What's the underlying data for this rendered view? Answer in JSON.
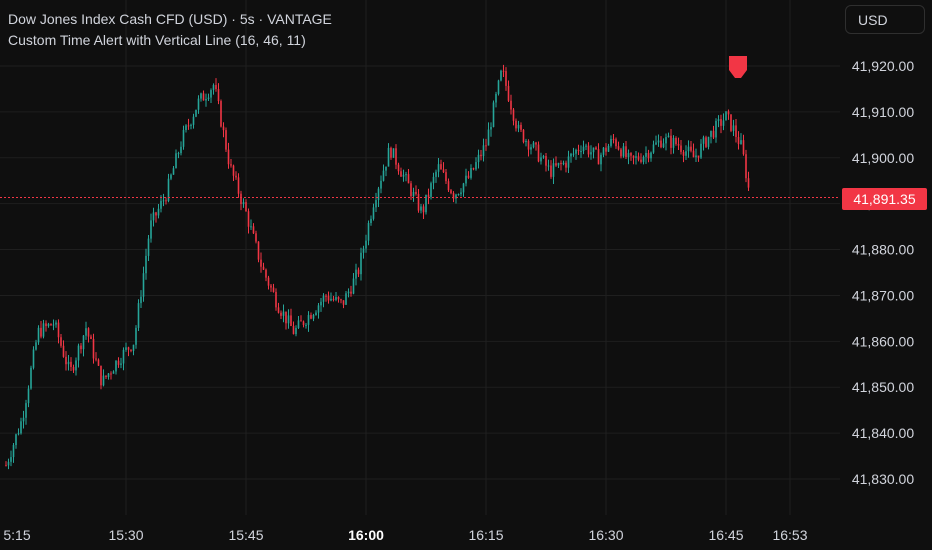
{
  "header": {
    "symbol_line": "Dow Jones Index Cash CFD (USD) · 5s · VANTAGE",
    "indicator_line": "Custom Time Alert with Vertical Line (16, 46, 11)"
  },
  "currency_button": "USD",
  "last_price_label": "41,891.35",
  "colors": {
    "up": "#26a69a",
    "down": "#f23645",
    "background": "#0f0f0f",
    "grid": "#1f1f1f",
    "text": "#d1d4dc"
  },
  "chart_data": {
    "type": "candlestick",
    "y_axis": {
      "range": [
        41825,
        41930
      ],
      "ticks": [
        41830,
        41840,
        41850,
        41860,
        41870,
        41880,
        41890,
        41900,
        41910,
        41920
      ],
      "tick_labels": [
        "41,830.00",
        "41,840.00",
        "41,850.00",
        "41,860.00",
        "41,870.00",
        "41,880.00",
        "41,890.00",
        "41,900.00",
        "41,910.00",
        "41,920.00"
      ]
    },
    "x_axis": {
      "tick_labels": [
        "5:15",
        "15:30",
        "15:45",
        "16:00",
        "16:15",
        "16:30",
        "16:45",
        "16:53"
      ],
      "bold_label": "16:00"
    },
    "last_price": 41891.35,
    "price_path": [
      [
        "15:15",
        41833
      ],
      [
        "15:17",
        41843
      ],
      [
        "15:19",
        41862
      ],
      [
        "15:21",
        41864
      ],
      [
        "15:23",
        41853
      ],
      [
        "15:25",
        41863
      ],
      [
        "15:27",
        41851
      ],
      [
        "15:29",
        41856
      ],
      [
        "15:31",
        41860
      ],
      [
        "15:33",
        41885
      ],
      [
        "15:35",
        41892
      ],
      [
        "15:37",
        41904
      ],
      [
        "15:39",
        41912
      ],
      [
        "15:41",
        41916
      ],
      [
        "15:43",
        41898
      ],
      [
        "15:45",
        41888
      ],
      [
        "15:47",
        41876
      ],
      [
        "15:49",
        41868
      ],
      [
        "15:51",
        41862
      ],
      [
        "15:53",
        41866
      ],
      [
        "15:55",
        41870
      ],
      [
        "15:57",
        41868
      ],
      [
        "15:59",
        41875
      ],
      [
        "16:01",
        41891
      ],
      [
        "16:03",
        41902
      ],
      [
        "16:05",
        41895
      ],
      [
        "16:07",
        41888
      ],
      [
        "16:09",
        41898
      ],
      [
        "16:11",
        41892
      ],
      [
        "16:13",
        41896
      ],
      [
        "16:15",
        41903
      ],
      [
        "16:17",
        41919
      ],
      [
        "16:19",
        41906
      ],
      [
        "16:21",
        41902
      ],
      [
        "16:23",
        41897
      ],
      [
        "16:25",
        41899
      ],
      [
        "16:27",
        41903
      ],
      [
        "16:29",
        41900
      ],
      [
        "16:31",
        41904
      ],
      [
        "16:33",
        41899
      ],
      [
        "16:35",
        41901
      ],
      [
        "16:37",
        41904
      ],
      [
        "16:39",
        41903
      ],
      [
        "16:41",
        41900
      ],
      [
        "16:43",
        41905
      ],
      [
        "16:45",
        41909
      ],
      [
        "16:46",
        41906
      ],
      [
        "16:47",
        41902
      ],
      [
        "16:48",
        41891.35
      ]
    ],
    "alert_marker_time": "16:46",
    "grid": true
  }
}
